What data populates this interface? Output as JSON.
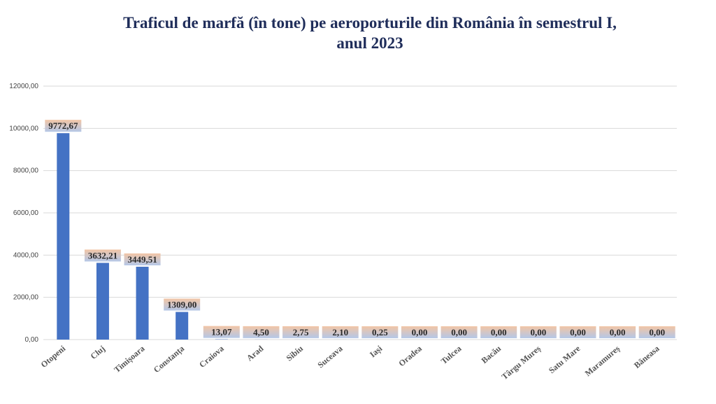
{
  "chart_data": {
    "type": "bar",
    "title": [
      "Traficul de marfă (în tone) pe aeroporturile din România în semestrul I,",
      "anul  2023"
    ],
    "categories": [
      "Otopeni",
      "Cluj",
      "Timișoara",
      "Constanța",
      "Craiova",
      "Arad",
      "Sibiu",
      "Suceava",
      "Iași",
      "Oradea",
      "Tulcea",
      "Bacău",
      "Târgu Mureș",
      "Satu Mare",
      "Maramureș",
      "Băneasa"
    ],
    "values": [
      9772.67,
      3632.21,
      3449.51,
      1309.0,
      13.07,
      4.5,
      2.75,
      2.1,
      0.25,
      0.0,
      0.0,
      0.0,
      0.0,
      0.0,
      0.0,
      0.0
    ],
    "value_labels": [
      "9772,67",
      "3632,21",
      "3449,51",
      "1309,00",
      "13,07",
      "4,50",
      "2,75",
      "2,10",
      "0,25",
      "0,00",
      "0,00",
      "0,00",
      "0,00",
      "0,00",
      "0,00",
      "0,00"
    ],
    "ylim": [
      0,
      12000
    ],
    "yticks": [
      0,
      2000,
      4000,
      6000,
      8000,
      10000,
      12000
    ],
    "ytick_labels": [
      "0,00",
      "2000,00",
      "4000,00",
      "6000,00",
      "8000,00",
      "10000,00",
      "12000,00"
    ],
    "grid": true,
    "xlabel": "",
    "ylabel": "",
    "colors": {
      "bar": "#4472c4",
      "grid": "#d9d9d9",
      "label_bg_top": "#f2c5a5",
      "label_bg_bottom": "#b4c7e7"
    }
  }
}
